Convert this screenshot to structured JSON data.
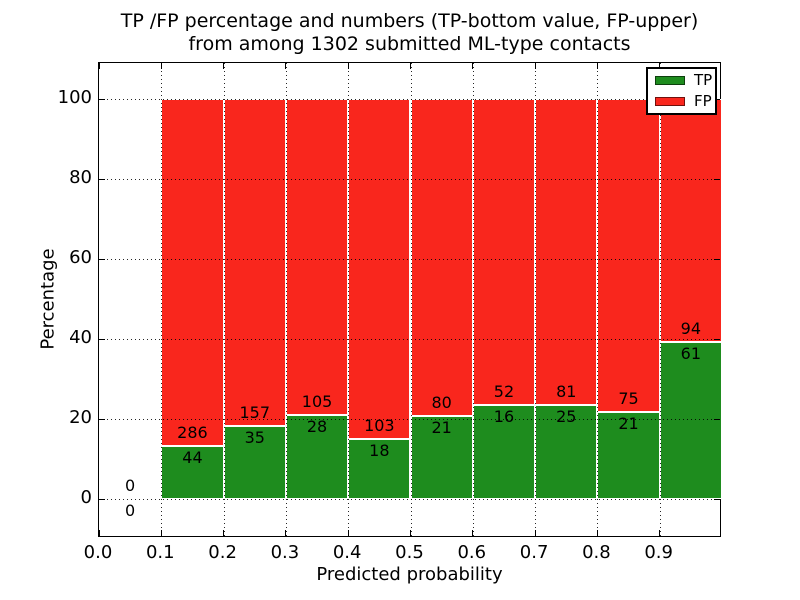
{
  "title": {
    "line1": "TP /FP percentage and numbers (TP-bottom value, FP-upper)",
    "line2": "from among 1302 submitted ML-type contacts"
  },
  "axes": {
    "xlabel": "Predicted probability",
    "ylabel": "Percentage",
    "xtick_labels": [
      "0.0",
      "0.1",
      "0.2",
      "0.3",
      "0.4",
      "0.5",
      "0.6",
      "0.7",
      "0.8",
      "0.9"
    ],
    "xtick_values": [
      0,
      0.1,
      0.2,
      0.3,
      0.4,
      0.5,
      0.6,
      0.7,
      0.8,
      0.9
    ],
    "ytick_labels": [
      "0",
      "20",
      "40",
      "60",
      "80",
      "100"
    ],
    "ytick_values": [
      0,
      20,
      40,
      60,
      80,
      100
    ],
    "xlim": [
      0,
      1
    ],
    "ylim": [
      0,
      100
    ],
    "grid_style": "dotted"
  },
  "legend": {
    "items": [
      {
        "label": "TP",
        "color": "#1e8c1e"
      },
      {
        "label": "FP",
        "color": "#f9261d"
      }
    ]
  },
  "chart_data": {
    "type": "bar",
    "subtype": "stacked_percentage",
    "title": "TP /FP percentage and numbers (TP-bottom value, FP-upper) from among 1302 submitted ML-type contacts",
    "xlabel": "Predicted probability",
    "ylabel": "Percentage",
    "total_contacts": 1302,
    "bin_width": 0.1,
    "colors": {
      "TP": "#1e8c1e",
      "FP": "#f9261d"
    },
    "series": [
      {
        "name": "TP",
        "color": "#1e8c1e",
        "counts": [
          0,
          44,
          35,
          28,
          18,
          21,
          16,
          25,
          21,
          61
        ]
      },
      {
        "name": "FP",
        "color": "#f9261d",
        "counts": [
          0,
          286,
          157,
          105,
          103,
          80,
          52,
          81,
          75,
          94
        ]
      }
    ],
    "bins": [
      {
        "range": [
          0.0,
          0.1
        ],
        "tp": 0,
        "fp": 0
      },
      {
        "range": [
          0.1,
          0.2
        ],
        "tp": 44,
        "fp": 286
      },
      {
        "range": [
          0.2,
          0.3
        ],
        "tp": 35,
        "fp": 157
      },
      {
        "range": [
          0.3,
          0.4
        ],
        "tp": 28,
        "fp": 105
      },
      {
        "range": [
          0.4,
          0.5
        ],
        "tp": 18,
        "fp": 103
      },
      {
        "range": [
          0.5,
          0.6
        ],
        "tp": 21,
        "fp": 80
      },
      {
        "range": [
          0.6,
          0.7
        ],
        "tp": 16,
        "fp": 52
      },
      {
        "range": [
          0.7,
          0.8
        ],
        "tp": 25,
        "fp": 81
      },
      {
        "range": [
          0.8,
          0.9
        ],
        "tp": 21,
        "fp": 75
      },
      {
        "range": [
          0.9,
          1.0
        ],
        "tp": 61,
        "fp": 94
      }
    ],
    "xlim": [
      0,
      1
    ],
    "ylim": [
      0,
      100
    ],
    "grid": "dotted",
    "legend_position": "upper right"
  }
}
